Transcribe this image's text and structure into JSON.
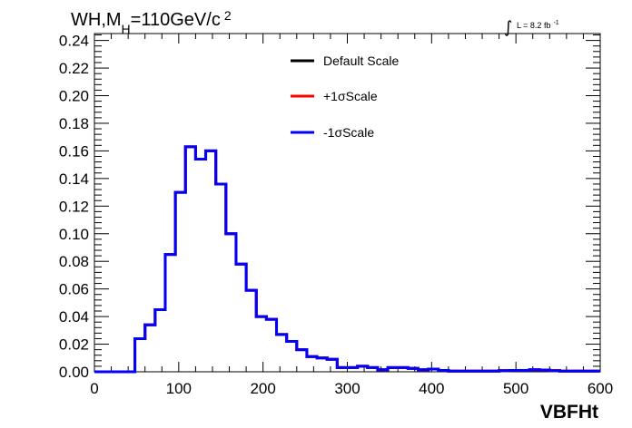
{
  "chart_data": {
    "type": "line",
    "title": "WH,M",
    "title_sub": "H",
    "title_rest": "=110GeV/c",
    "title_sup": "2",
    "lumi_symbol": "∫",
    "lumi_text": "L = 8.2 fb",
    "lumi_sup": "-1",
    "xlabel": "VBFHt",
    "ylabel": "",
    "xlim": [
      0,
      600
    ],
    "ylim": [
      0,
      0.245
    ],
    "x_ticks": [
      0,
      100,
      200,
      300,
      400,
      500,
      600
    ],
    "x_tick_labels": [
      "0",
      "100",
      "200",
      "300",
      "400",
      "500",
      "600"
    ],
    "y_ticks": [
      0,
      0.02,
      0.04,
      0.06,
      0.08,
      0.1,
      0.12,
      0.14,
      0.16,
      0.18,
      0.2,
      0.22,
      0.24
    ],
    "y_tick_labels": [
      "0.00",
      "0.02",
      "0.04",
      "0.06",
      "0.08",
      "0.10",
      "0.12",
      "0.14",
      "0.16",
      "0.18",
      "0.20",
      "0.22",
      "0.24"
    ],
    "bin_width": 12,
    "bin_edges_start": 0,
    "legend": {
      "placement": "top-center",
      "entries": [
        {
          "label": "Default Scale",
          "color": "#000000"
        },
        {
          "label": "+1σScale",
          "color": "#ff0000"
        },
        {
          "label": "-1σScale",
          "color": "#0000ff"
        }
      ]
    },
    "series": [
      {
        "name": "Default Scale",
        "color": "#000000",
        "values": [
          0,
          0,
          0,
          0,
          0.024,
          0.034,
          0.045,
          0.085,
          0.13,
          0.163,
          0.154,
          0.16,
          0.136,
          0.1,
          0.078,
          0.059,
          0.04,
          0.038,
          0.027,
          0.022,
          0.016,
          0.011,
          0.01,
          0.009,
          0.003,
          0.003,
          0.004,
          0.003,
          0.0015,
          0.003,
          0.003,
          0.0025,
          0.0015,
          0.002,
          0.001,
          0.0005,
          0.0005,
          0.0005,
          0.0005,
          0.0005,
          0.0008,
          0.001,
          0.001,
          0.0015,
          0.0012,
          0.0008,
          0.0005,
          0.0005,
          0.0005,
          0.0005
        ]
      },
      {
        "name": "+1σScale",
        "color": "#ff0000",
        "values": [
          0,
          0,
          0,
          0,
          0.024,
          0.034,
          0.045,
          0.085,
          0.13,
          0.163,
          0.154,
          0.16,
          0.136,
          0.1,
          0.078,
          0.059,
          0.04,
          0.038,
          0.027,
          0.022,
          0.016,
          0.011,
          0.01,
          0.009,
          0.003,
          0.003,
          0.004,
          0.003,
          0.0015,
          0.003,
          0.003,
          0.0025,
          0.0015,
          0.002,
          0.001,
          0.0005,
          0.0005,
          0.0005,
          0.0005,
          0.0005,
          0.0008,
          0.001,
          0.001,
          0.0015,
          0.0012,
          0.0008,
          0.0005,
          0.0005,
          0.0005,
          0.0005
        ]
      },
      {
        "name": "-1σScale",
        "color": "#0000ff",
        "values": [
          0,
          0,
          0,
          0,
          0.024,
          0.034,
          0.045,
          0.085,
          0.13,
          0.163,
          0.154,
          0.16,
          0.136,
          0.1,
          0.078,
          0.059,
          0.04,
          0.038,
          0.027,
          0.022,
          0.016,
          0.011,
          0.01,
          0.009,
          0.003,
          0.003,
          0.004,
          0.003,
          0.0015,
          0.003,
          0.003,
          0.0025,
          0.0015,
          0.002,
          0.001,
          0.0005,
          0.0005,
          0.0005,
          0.0005,
          0.0005,
          0.0008,
          0.001,
          0.001,
          0.0015,
          0.0012,
          0.0008,
          0.0005,
          0.0005,
          0.0005,
          0.0005
        ]
      }
    ]
  }
}
